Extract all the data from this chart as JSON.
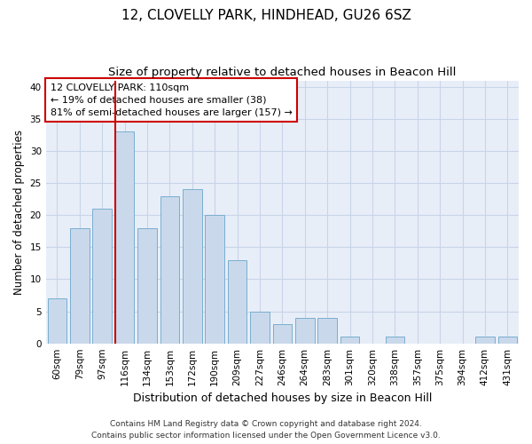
{
  "title1": "12, CLOVELLY PARK, HINDHEAD, GU26 6SZ",
  "title2": "Size of property relative to detached houses in Beacon Hill",
  "xlabel": "Distribution of detached houses by size in Beacon Hill",
  "ylabel": "Number of detached properties",
  "categories": [
    "60sqm",
    "79sqm",
    "97sqm",
    "116sqm",
    "134sqm",
    "153sqm",
    "172sqm",
    "190sqm",
    "209sqm",
    "227sqm",
    "246sqm",
    "264sqm",
    "283sqm",
    "301sqm",
    "320sqm",
    "338sqm",
    "357sqm",
    "375sqm",
    "394sqm",
    "412sqm",
    "431sqm"
  ],
  "values": [
    7,
    18,
    21,
    33,
    18,
    23,
    24,
    20,
    13,
    5,
    3,
    4,
    4,
    1,
    0,
    1,
    0,
    0,
    0,
    1,
    1
  ],
  "bar_color": "#c9d9eb",
  "bar_edge_color": "#7aaed0",
  "vline_color": "#cc0000",
  "vline_x_index": 2.58,
  "annotation_text": "12 CLOVELLY PARK: 110sqm\n← 19% of detached houses are smaller (38)\n81% of semi-detached houses are larger (157) →",
  "annotation_box_color": "#ffffff",
  "annotation_box_edge": "#cc0000",
  "ylim": [
    0,
    41
  ],
  "yticks": [
    0,
    5,
    10,
    15,
    20,
    25,
    30,
    35,
    40
  ],
  "grid_color": "#c8d4e8",
  "bg_color": "#e8eef8",
  "footer_line1": "Contains HM Land Registry data © Crown copyright and database right 2024.",
  "footer_line2": "Contains public sector information licensed under the Open Government Licence v3.0.",
  "title1_fontsize": 11,
  "title2_fontsize": 9.5,
  "xlabel_fontsize": 9,
  "ylabel_fontsize": 8.5,
  "tick_fontsize": 7.5,
  "annotation_fontsize": 8,
  "footer_fontsize": 6.5
}
